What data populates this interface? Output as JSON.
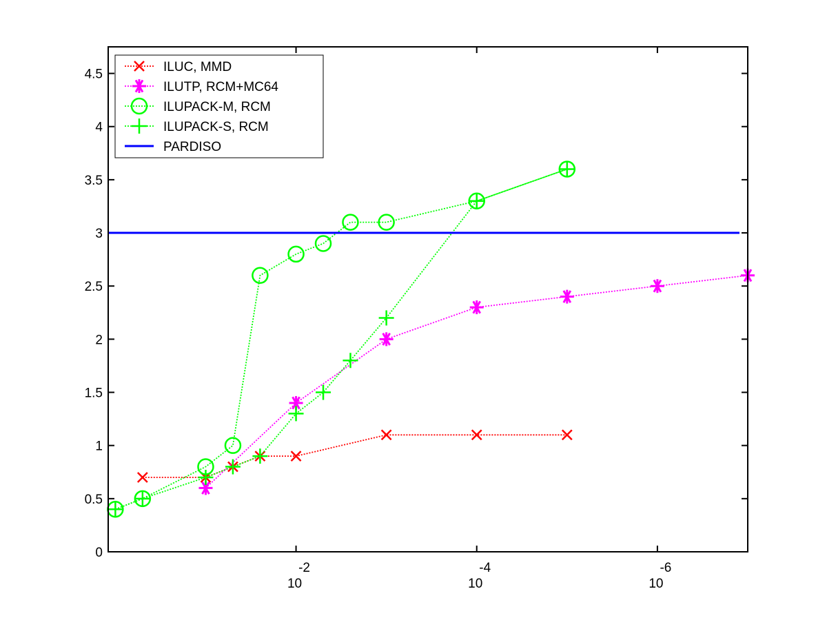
{
  "chart_data": {
    "type": "line",
    "title": "",
    "xlabel": "",
    "ylabel": "",
    "x_scale": "log-reversed",
    "xlim": [
      1.2,
      1e-07
    ],
    "ylim": [
      0,
      4.75
    ],
    "y_ticks": [
      0,
      0.5,
      1,
      1.5,
      2,
      2.5,
      3,
      3.5,
      4,
      4.5
    ],
    "y_tick_labels": [
      "0",
      "0.5",
      "1",
      "1.5",
      "2",
      "2.5",
      "3",
      "3.5",
      "4",
      "4.5"
    ],
    "x_ticks": [
      {
        "value": 0.01,
        "base": "10",
        "exp": "-2"
      },
      {
        "value": 0.0001,
        "base": "10",
        "exp": "-4"
      },
      {
        "value": 1e-06,
        "base": "10",
        "exp": "-6"
      }
    ],
    "grid": false,
    "legend_position": "top-left",
    "series": [
      {
        "name": "ILUC, MMD",
        "color": "#ff0000",
        "marker": "x",
        "linestyle": "dotted",
        "x": [
          0.5,
          0.1,
          0.05,
          0.025,
          0.01,
          0.001,
          0.0001,
          1e-05
        ],
        "y": [
          0.7,
          0.7,
          0.8,
          0.9,
          0.9,
          1.1,
          1.1,
          1.1
        ]
      },
      {
        "name": "ILUTP, RCM+MC64",
        "color": "#ff00ff",
        "marker": "asterisk",
        "linestyle": "dotted",
        "x": [
          0.1,
          0.01,
          0.001,
          0.0001,
          1e-05,
          1e-06,
          1e-07
        ],
        "y": [
          0.6,
          1.4,
          2.0,
          2.3,
          2.4,
          2.5,
          2.6
        ]
      },
      {
        "name": "ILUPACK-M, RCM",
        "color": "#00ff00",
        "marker": "circle",
        "linestyle": "dotted",
        "x": [
          1.0,
          0.5,
          0.1,
          0.05,
          0.025,
          0.01,
          0.005,
          0.0025,
          0.001,
          0.0001,
          1e-05
        ],
        "y": [
          0.4,
          0.5,
          0.8,
          1.0,
          2.6,
          2.8,
          2.9,
          3.1,
          3.1,
          3.3,
          3.6
        ]
      },
      {
        "name": "ILUPACK-S, RCM",
        "color": "#00ff00",
        "marker": "plus",
        "linestyle": "dotted",
        "x": [
          1.0,
          0.5,
          0.1,
          0.05,
          0.025,
          0.01,
          0.005,
          0.0025,
          0.001,
          0.0001,
          1e-05
        ],
        "y": [
          0.4,
          0.5,
          0.7,
          0.8,
          0.9,
          1.3,
          1.5,
          1.8,
          2.2,
          3.3,
          3.6
        ]
      },
      {
        "name": "PARDISO",
        "color": "#0000ff",
        "marker": "none",
        "linestyle": "solid",
        "hline": 3.0
      }
    ]
  }
}
